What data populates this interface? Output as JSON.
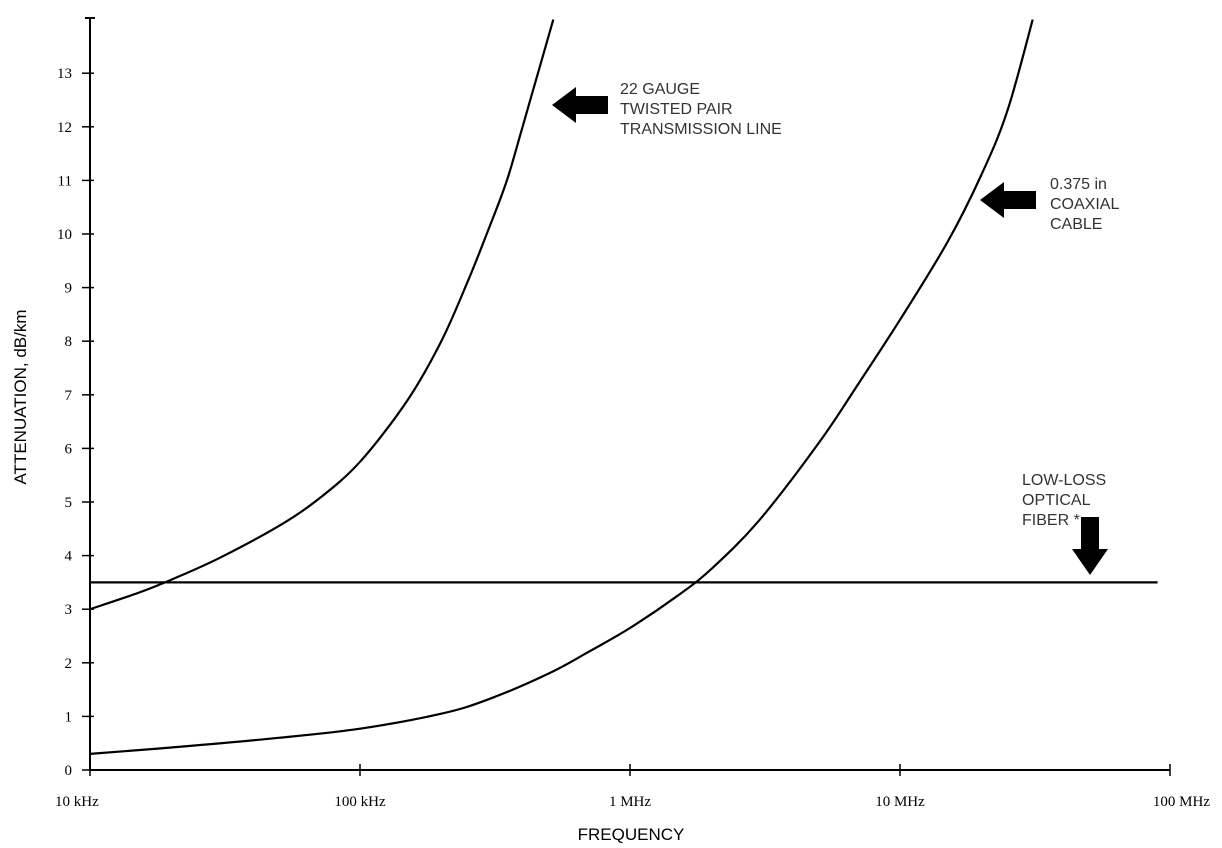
{
  "chart_data": {
    "type": "line",
    "xlabel": "FREQUENCY",
    "ylabel": "ATTENUATION, dB/km",
    "x_scale": "log",
    "x_ticks": [
      {
        "value": 10000,
        "label": "10 kHz"
      },
      {
        "value": 100000,
        "label": "100 kHz"
      },
      {
        "value": 1000000,
        "label": "1 MHz"
      },
      {
        "value": 10000000,
        "label": "10 MHz"
      },
      {
        "value": 100000000,
        "label": "100 MHz"
      }
    ],
    "y_ticks": [
      0,
      1,
      2,
      3,
      4,
      5,
      6,
      7,
      8,
      9,
      10,
      11,
      12,
      13
    ],
    "xlim": [
      10000,
      100000000
    ],
    "ylim": [
      0,
      14
    ],
    "grid": false,
    "series": [
      {
        "x": [
          10000,
          15000,
          20000,
          30000,
          50000,
          70000,
          100000,
          150000,
          200000,
          250000,
          300000,
          350000,
          400000,
          450000,
          520000
        ],
        "y": [
          3.0,
          3.3,
          3.55,
          3.95,
          4.55,
          5.05,
          5.75,
          6.9,
          8.0,
          9.1,
          10.1,
          11.0,
          12.0,
          12.9,
          14.0
        ]
      },
      {
        "x": [
          10000,
          20000,
          50000,
          100000,
          200000,
          300000,
          500000,
          700000,
          1000000,
          1500000,
          2000000,
          3000000,
          5000000,
          7000000,
          10000000,
          15000000,
          20000000,
          25000000,
          31000000
        ],
        "y": [
          0.3,
          0.42,
          0.6,
          0.77,
          1.05,
          1.32,
          1.8,
          2.2,
          2.65,
          3.25,
          3.75,
          4.65,
          6.1,
          7.2,
          8.4,
          9.85,
          11.1,
          12.3,
          14.0
        ]
      },
      {
        "x": [
          10000,
          90000000
        ],
        "y": [
          3.5,
          3.5
        ]
      }
    ],
    "annotations": [
      {
        "lines": [
          "22 GAUGE",
          "TWISTED PAIR",
          "TRANSMISSION LINE"
        ],
        "arrow_direction": "left"
      },
      {
        "lines": [
          "0.375 in",
          "COAXIAL",
          "CABLE"
        ],
        "arrow_direction": "left"
      },
      {
        "lines": [
          "LOW-LOSS",
          "OPTICAL",
          "FIBER *"
        ],
        "arrow_direction": "down"
      }
    ]
  }
}
